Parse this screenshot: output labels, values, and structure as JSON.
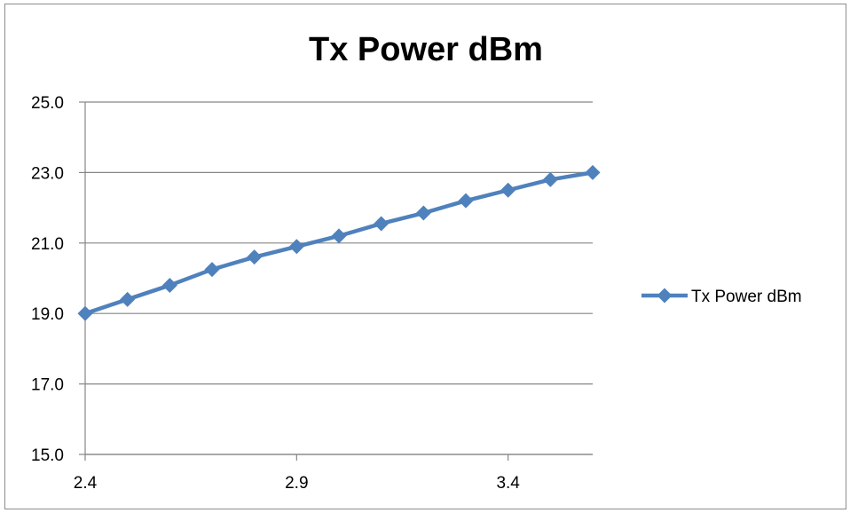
{
  "chart_data": {
    "type": "line",
    "title": "Tx Power dBm",
    "xlabel": "",
    "ylabel": "",
    "x": [
      2.4,
      2.5,
      2.6,
      2.7,
      2.8,
      2.9,
      3.0,
      3.1,
      3.2,
      3.3,
      3.4,
      3.5,
      3.6
    ],
    "x_ticks": [
      "2.4",
      "2.9",
      "3.4"
    ],
    "y_ticks": [
      "15.0",
      "17.0",
      "19.0",
      "21.0",
      "23.0",
      "25.0"
    ],
    "xlim": [
      2.4,
      3.6
    ],
    "ylim": [
      15,
      25
    ],
    "grid": "horizontal",
    "legend_position": "right",
    "series": [
      {
        "name": "Tx Power dBm",
        "color": "#4f81bd",
        "marker": "diamond",
        "values": [
          19.0,
          19.4,
          19.8,
          20.25,
          20.6,
          20.9,
          21.2,
          21.55,
          21.85,
          22.2,
          22.5,
          22.8,
          23.0
        ]
      }
    ]
  }
}
